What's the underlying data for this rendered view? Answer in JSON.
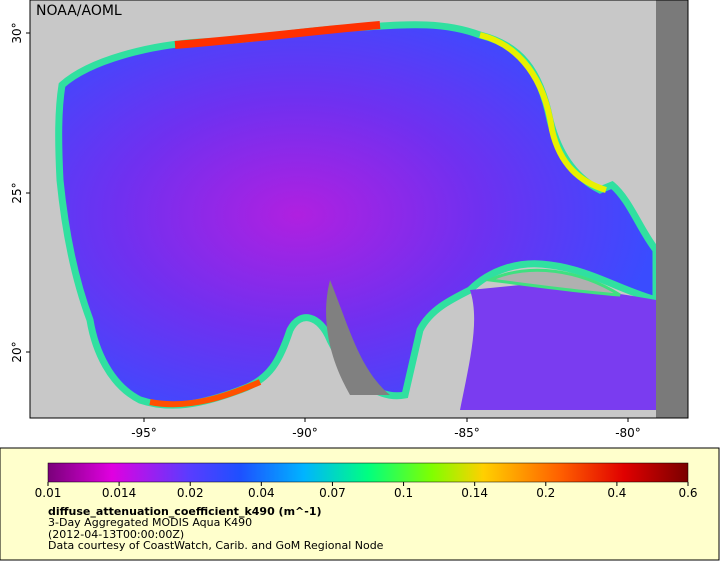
{
  "map": {
    "label": "NOAA/AOML",
    "lat_ticks": [
      "30°",
      "25°",
      "20°"
    ],
    "lon_ticks": [
      "-95°",
      "-90°",
      "-85°",
      "-80°"
    ]
  },
  "legend": {
    "colorbar_ticks": [
      "0.01",
      "0.014",
      "0.02",
      "0.04",
      "0.07",
      "0.1",
      "0.14",
      "0.2",
      "0.4",
      "0.6"
    ],
    "variable": "diffuse_attenuation_coefficient_k490 (m^-1)",
    "description": "3-Day Aggregated MODIS Aqua K490",
    "time": "(2012-04-13T00:00:00Z)",
    "credit": "Data courtesy of CoastWatch, Carib. and GoM Regional Node"
  }
}
